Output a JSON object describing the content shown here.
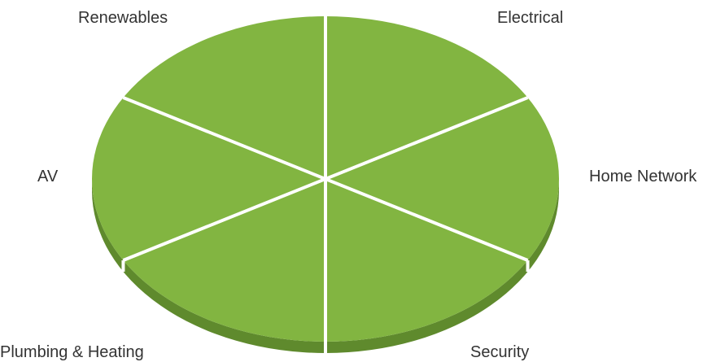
{
  "diagram": {
    "colors": {
      "top": "#82b541",
      "side": "#5f8a2d",
      "divider": "#ffffff",
      "label": "#333333"
    },
    "segments": [
      {
        "id": "electrical",
        "label": "Electrical"
      },
      {
        "id": "home-network",
        "label": "Home Network"
      },
      {
        "id": "security",
        "label": "Security"
      },
      {
        "id": "plumbing",
        "label": "Plumbing & Heating"
      },
      {
        "id": "av",
        "label": "AV"
      },
      {
        "id": "renewables",
        "label": "Renewables"
      }
    ]
  }
}
